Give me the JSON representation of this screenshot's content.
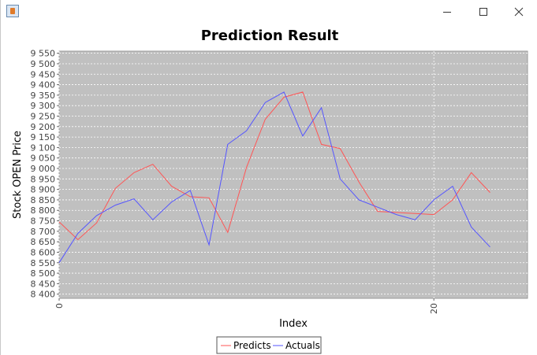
{
  "window": {
    "min_glyph": "—",
    "max_glyph": "☐",
    "close_glyph": "✕"
  },
  "chart_data": {
    "type": "line",
    "title": "Prediction Result",
    "xlabel": "Index",
    "ylabel": "Stock OPEN Price",
    "xlim": [
      0,
      25
    ],
    "ylim": [
      8380,
      9560
    ],
    "x_ticks": [
      0,
      20
    ],
    "x_tick_labels": [
      "0",
      "20"
    ],
    "y_ticks": [
      8400,
      8450,
      8500,
      8550,
      8600,
      8650,
      8700,
      8750,
      8800,
      8850,
      8900,
      8950,
      9000,
      9050,
      9100,
      9150,
      9200,
      9250,
      9300,
      9350,
      9400,
      9450,
      9500,
      9550
    ],
    "y_tick_labels": [
      "8 400",
      "8 450",
      "8 500",
      "8 550",
      "8 600",
      "8 650",
      "8 700",
      "8 750",
      "8 800",
      "8 850",
      "8 900",
      "8 950",
      "9 000",
      "9 050",
      "9 100",
      "9 150",
      "9 200",
      "9 250",
      "9 300",
      "9 350",
      "9 400",
      "9 450",
      "9 500",
      "9 550"
    ],
    "grid": true,
    "legend_position": "bottom",
    "background": "#c0c0c0",
    "x": [
      0,
      1,
      2,
      3,
      4,
      5,
      6,
      7,
      8,
      9,
      10,
      11,
      12,
      13,
      14,
      15,
      16,
      17,
      18,
      19,
      20,
      21,
      22,
      23
    ],
    "series": [
      {
        "name": "Predicts",
        "color": "#ff5555",
        "values": [
          8745,
          8660,
          8740,
          8905,
          8980,
          9020,
          8915,
          8865,
          8860,
          8695,
          9005,
          9235,
          9340,
          9365,
          9115,
          9095,
          8935,
          8795,
          8790,
          8785,
          8780,
          8850,
          8980,
          8885
        ]
      },
      {
        "name": "Actuals",
        "color": "#5555ff",
        "values": [
          8550,
          8690,
          8775,
          8825,
          8855,
          8755,
          8840,
          8895,
          8635,
          9115,
          9180,
          9315,
          9365,
          9155,
          9290,
          8950,
          8850,
          8815,
          8780,
          8755,
          8850,
          8915,
          8720,
          8625
        ]
      }
    ]
  }
}
